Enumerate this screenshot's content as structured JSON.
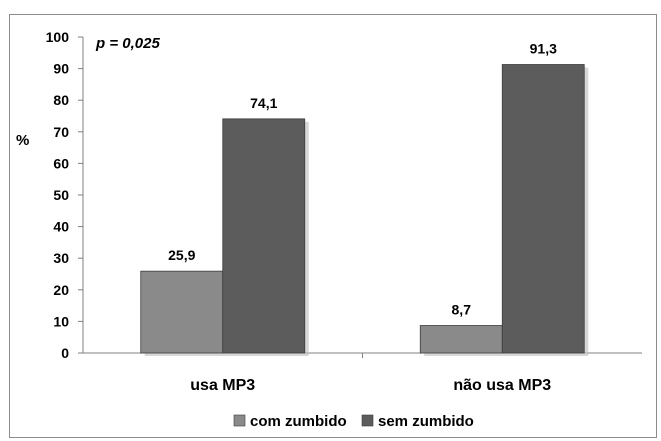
{
  "chart_data": {
    "type": "bar",
    "categories": [
      "usa MP3",
      "não usa MP3"
    ],
    "series": [
      {
        "name": "com zumbido",
        "values": [
          25.9,
          8.7
        ],
        "labels": [
          "25,9",
          "8,7"
        ],
        "color": "#8a8a8a"
      },
      {
        "name": "sem zumbido",
        "values": [
          74.1,
          91.3
        ],
        "labels": [
          "74,1",
          "91,3"
        ],
        "color": "#5c5c5c"
      }
    ],
    "ylabel": "%",
    "ylim": [
      0,
      100
    ],
    "yticks": [
      0,
      10,
      20,
      30,
      40,
      50,
      60,
      70,
      80,
      90,
      100
    ],
    "annotation": "p = 0,025",
    "grid": false,
    "legend_position": "bottom"
  }
}
